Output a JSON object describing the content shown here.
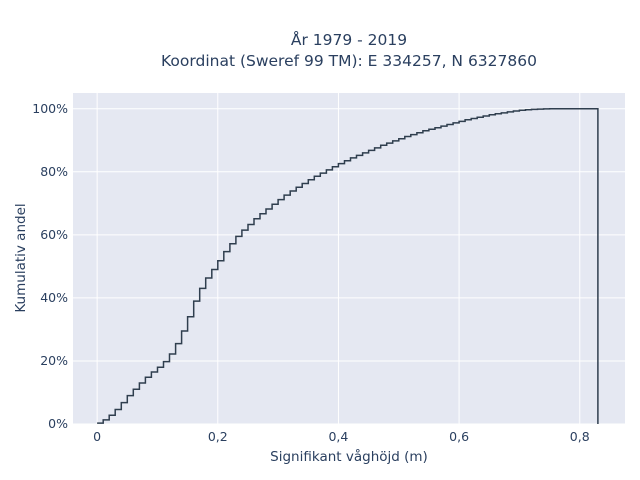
{
  "chart_data": {
    "type": "line",
    "title_line1": "År 1979 - 2019",
    "title_line2": "Koordinat (Sweref 99 TM): E 334257, N 6327860",
    "xlabel": "Signifikant våghöjd (m)",
    "ylabel": "Kumulativ andel",
    "xlim": [
      -0.04,
      0.875
    ],
    "ylim": [
      0,
      1.05
    ],
    "x_ticks": [
      0,
      0.2,
      0.4,
      0.6,
      0.8
    ],
    "x_tick_labels": [
      "0",
      "0,2",
      "0,4",
      "0,6",
      "0,8"
    ],
    "y_ticks": [
      0,
      0.2,
      0.4,
      0.6,
      0.8,
      1.0
    ],
    "y_tick_labels": [
      "0%",
      "20%",
      "40%",
      "60%",
      "80%",
      "100%"
    ],
    "grid": true,
    "step": true,
    "line_color": "#2f3e4e",
    "plot_bg": "#e5e8f2",
    "series": [
      {
        "x": [
          0,
          0.01,
          0.02,
          0.03,
          0.04,
          0.05,
          0.06,
          0.07,
          0.08,
          0.09,
          0.1,
          0.11,
          0.12,
          0.13,
          0.14,
          0.15,
          0.16,
          0.17,
          0.18,
          0.19,
          0.2,
          0.21,
          0.22,
          0.23,
          0.24,
          0.25,
          0.26,
          0.27,
          0.28,
          0.29,
          0.3,
          0.31,
          0.32,
          0.33,
          0.34,
          0.35,
          0.36,
          0.37,
          0.38,
          0.39,
          0.4,
          0.41,
          0.42,
          0.43,
          0.44,
          0.45,
          0.46,
          0.47,
          0.48,
          0.49,
          0.5,
          0.51,
          0.52,
          0.53,
          0.54,
          0.55,
          0.56,
          0.57,
          0.58,
          0.59,
          0.6,
          0.61,
          0.62,
          0.63,
          0.64,
          0.65,
          0.66,
          0.67,
          0.68,
          0.69,
          0.7,
          0.71,
          0.72,
          0.73,
          0.74,
          0.75,
          0.76,
          0.77,
          0.78,
          0.79,
          0.8,
          0.81,
          0.83
        ],
        "y": [
          0.003,
          0.013,
          0.028,
          0.046,
          0.068,
          0.09,
          0.11,
          0.13,
          0.148,
          0.165,
          0.18,
          0.198,
          0.222,
          0.255,
          0.295,
          0.34,
          0.39,
          0.43,
          0.463,
          0.49,
          0.518,
          0.547,
          0.572,
          0.595,
          0.615,
          0.633,
          0.651,
          0.667,
          0.682,
          0.697,
          0.712,
          0.726,
          0.739,
          0.751,
          0.763,
          0.775,
          0.786,
          0.796,
          0.806,
          0.816,
          0.826,
          0.835,
          0.844,
          0.852,
          0.86,
          0.868,
          0.876,
          0.884,
          0.891,
          0.898,
          0.905,
          0.912,
          0.918,
          0.924,
          0.93,
          0.935,
          0.94,
          0.945,
          0.95,
          0.955,
          0.96,
          0.965,
          0.969,
          0.973,
          0.977,
          0.981,
          0.984,
          0.987,
          0.99,
          0.993,
          0.995,
          0.997,
          0.998,
          0.999,
          0.9995,
          1.0,
          1.0,
          1.0,
          1.0,
          1.0,
          1.0,
          1.0,
          0.0
        ]
      }
    ]
  }
}
